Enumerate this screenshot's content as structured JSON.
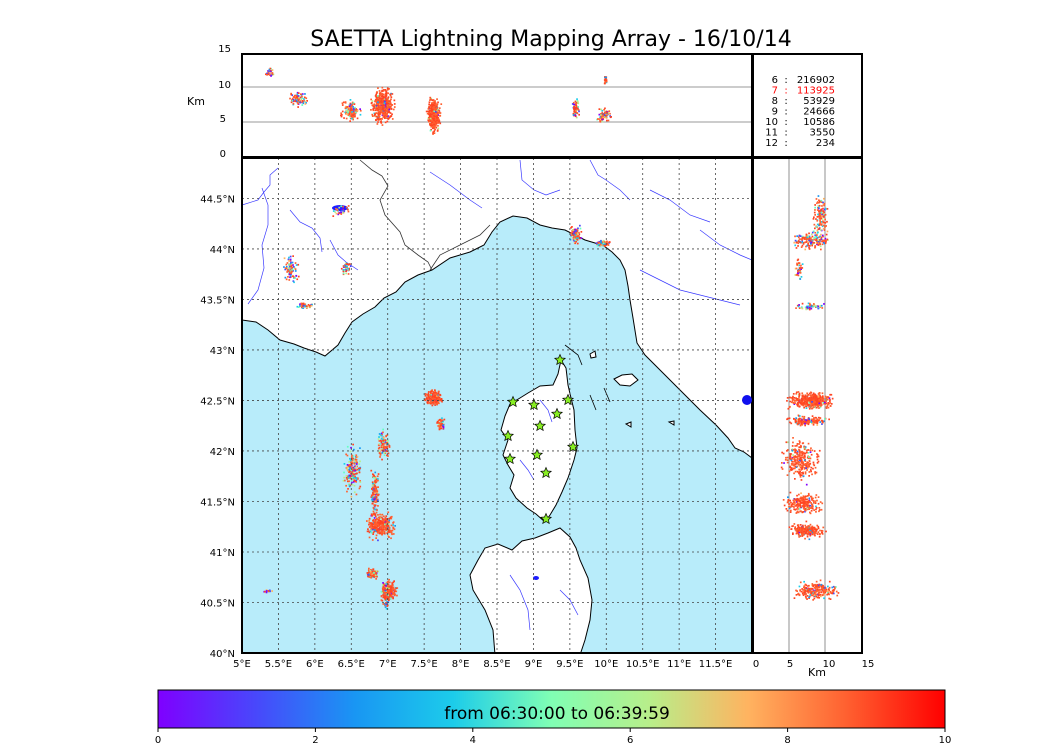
{
  "title": "SAETTA Lightning Mapping Array - 16/10/14",
  "colors": {
    "sea": "#b8ecfa",
    "land": "#ffffff",
    "coast": "#000000",
    "rivers": "#3a3aff",
    "borders": "#333333",
    "grid": "#555555",
    "station": "#88ee22"
  },
  "altitude_panel": {
    "axis_label": "Km",
    "ticks": [
      "0",
      "5",
      "10",
      "15"
    ]
  },
  "stats": [
    {
      "stations": "6",
      "count": "216902",
      "highlight": false
    },
    {
      "stations": "7",
      "count": "113925",
      "highlight": true
    },
    {
      "stations": "8",
      "count": "53929",
      "highlight": false
    },
    {
      "stations": "9",
      "count": "24666",
      "highlight": false
    },
    {
      "stations": "10",
      "count": "10586",
      "highlight": false
    },
    {
      "stations": "11",
      "count": "3550",
      "highlight": false
    },
    {
      "stations": "12",
      "count": "234",
      "highlight": false
    }
  ],
  "map": {
    "lon_ticks": [
      "5°E",
      "5.5°E",
      "6°E",
      "6.5°E",
      "7°E",
      "7.5°E",
      "8°E",
      "8.5°E",
      "9°E",
      "9.5°E",
      "10°E",
      "10.5°E",
      "11°E",
      "11.5°E"
    ],
    "lat_ticks": [
      "40°N",
      "40.5°N",
      "41°N",
      "41.5°N",
      "42°N",
      "42.5°N",
      "43°N",
      "43.5°N",
      "44°N",
      "44.5°N"
    ]
  },
  "side_panel": {
    "axis_label": "Km",
    "ticks": [
      "0",
      "5",
      "10",
      "15"
    ]
  },
  "colorbar": {
    "label": "from 06:30:00 to 06:39:59",
    "ticks": [
      "0",
      "2",
      "4",
      "6",
      "8",
      "10"
    ],
    "range": [
      0,
      10
    ],
    "colormap": "rainbow"
  }
}
